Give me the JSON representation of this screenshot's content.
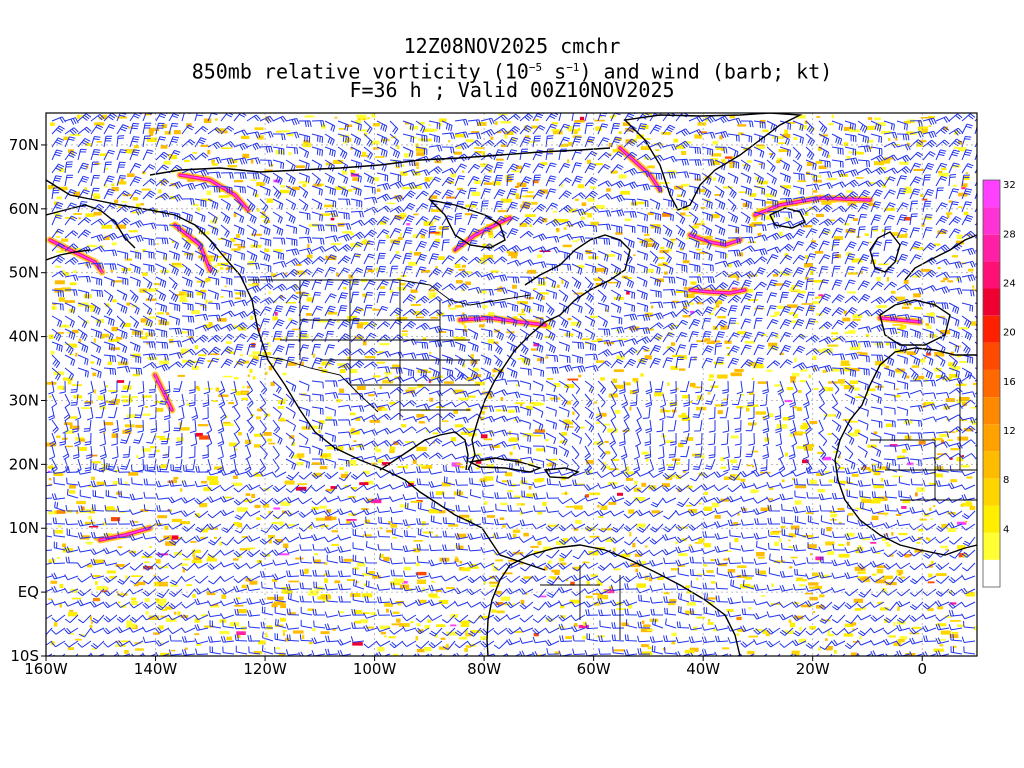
{
  "header": {
    "line1": "12Z08NOV2025 cmchr",
    "line2_prefix": "850mb relative vorticity (10",
    "line2_exp1": "−5",
    "line2_mid": " s",
    "line2_exp2": "−1",
    "line2_suffix": ") and wind (barb; kt)",
    "line3": "F=36 h ; Valid 00Z10NOV2025"
  },
  "axes": {
    "lon_labels": [
      "160W",
      "140W",
      "120W",
      "100W",
      "80W",
      "60W",
      "40W",
      "20W",
      "0"
    ],
    "lat_labels": [
      "70N",
      "60N",
      "50N",
      "40N",
      "30N",
      "20N",
      "10N",
      "EQ",
      "10S"
    ],
    "lon_range": [
      -160,
      10
    ],
    "lat_range": [
      -10,
      75
    ]
  },
  "colorbar": {
    "labels": [
      "4",
      "8",
      "12",
      "16",
      "20",
      "24",
      "28",
      "32"
    ],
    "colors": [
      "#ffffff",
      "#ffff33",
      "#ffee00",
      "#ffd500",
      "#ffbb00",
      "#ffa200",
      "#ff8a00",
      "#ff6a00",
      "#ff4a00",
      "#ff2000",
      "#ee0030",
      "#ff1075",
      "#ff20a5",
      "#ff33d5",
      "#ff40ff"
    ]
  },
  "colors": {
    "barb": "#2233ee",
    "coast": "#000000",
    "background": "#ffffff"
  }
}
